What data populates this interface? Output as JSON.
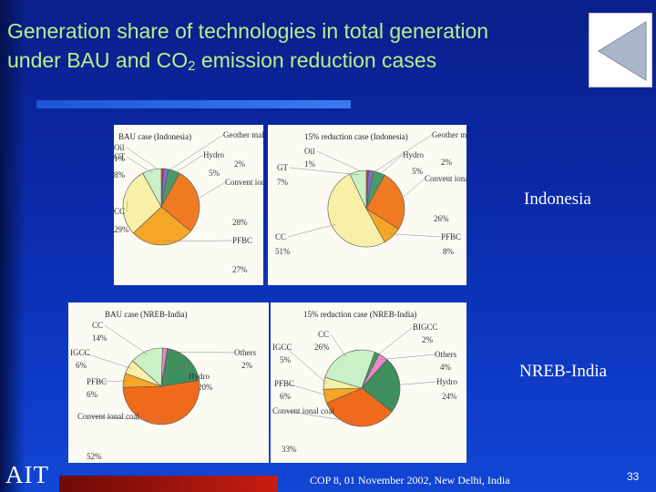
{
  "slide": {
    "title_line1": "Generation share of technologies in total generation",
    "title_line2_pre": "under BAU and CO",
    "title_line2_sub": "2",
    "title_line2_post": " emission reduction cases",
    "nav_icon": "back-triangle-icon",
    "logo": "AIT",
    "footer": "COP 8, 01 November 2002, New Delhi, India",
    "page_number": "33",
    "country_labels": {
      "indonesia": "Indonesia",
      "india": "NREB-India"
    }
  },
  "chart_data": [
    {
      "type": "pie",
      "title": "BAU case (Indonesia)",
      "slices": [
        {
          "label": "Oil",
          "value": 1,
          "text": "1%",
          "color": "#d03a3a"
        },
        {
          "label": "Geother mal",
          "value": 2,
          "text": "2%",
          "color": "#7a6fd6"
        },
        {
          "label": "Hydro",
          "value": 5,
          "text": "5%",
          "color": "#4a9a6a"
        },
        {
          "label": "Convent ional coal",
          "value": 28,
          "text": "28%",
          "color": "#f07a22"
        },
        {
          "label": "PFBC",
          "value": 27,
          "text": "27%",
          "color": "#f4a626"
        },
        {
          "label": "CC",
          "value": 29,
          "text": "29%",
          "color": "#f8f0a6"
        },
        {
          "label": "GT",
          "value": 8,
          "text": "8%",
          "color": "#c9f0c6"
        }
      ]
    },
    {
      "type": "pie",
      "title": "15% reduction case (Indonesia)",
      "slices": [
        {
          "label": "Oil",
          "value": 1,
          "text": "1%",
          "color": "#d03a3a"
        },
        {
          "label": "Geother mal",
          "value": 2,
          "text": "2%",
          "color": "#7a6fd6"
        },
        {
          "label": "Hydro",
          "value": 5,
          "text": "5%",
          "color": "#4a9a6a"
        },
        {
          "label": "Convent ional coal",
          "value": 26,
          "text": "26%",
          "color": "#f07a22"
        },
        {
          "label": "PFBC",
          "value": 8,
          "text": "8%",
          "color": "#f4a626"
        },
        {
          "label": "CC",
          "value": 51,
          "text": "51%",
          "color": "#f8f0a6"
        },
        {
          "label": "GT",
          "value": 7,
          "text": "7%",
          "color": "#c9f0c6"
        }
      ]
    },
    {
      "type": "pie",
      "title": "BAU case (NREB-India)",
      "slices": [
        {
          "label": "Others",
          "value": 2,
          "text": "2%",
          "color": "#ee88c8"
        },
        {
          "label": "Hydro",
          "value": 20,
          "text": "20%",
          "color": "#3e8e5e"
        },
        {
          "label": "Convent ional coal",
          "value": 52,
          "text": "52%",
          "color": "#f06a1c"
        },
        {
          "label": "PFBC",
          "value": 6,
          "text": "6%",
          "color": "#f4a626"
        },
        {
          "label": "IGCC",
          "value": 6,
          "text": "6%",
          "color": "#f8f0a6"
        },
        {
          "label": "CC",
          "value": 14,
          "text": "14%",
          "color": "#c9f0c6"
        }
      ]
    },
    {
      "type": "pie",
      "title": "15% reduction case (NREB-India)",
      "slices": [
        {
          "label": "BIGCC",
          "value": 2,
          "text": "2%",
          "color": "#3a9a5a"
        },
        {
          "label": "Others",
          "value": 4,
          "text": "4%",
          "color": "#ee88c8"
        },
        {
          "label": "Hydro",
          "value": 24,
          "text": "24%",
          "color": "#3e8e5e"
        },
        {
          "label": "Convent ional coal",
          "value": 33,
          "text": "33%",
          "color": "#f06a1c"
        },
        {
          "label": "PFBC",
          "value": 6,
          "text": "6%",
          "color": "#f4a626"
        },
        {
          "label": "IGCC",
          "value": 5,
          "text": "5%",
          "color": "#f8f0a6"
        },
        {
          "label": "CC",
          "value": 26,
          "text": "26%",
          "color": "#c9f0c6"
        }
      ]
    }
  ]
}
